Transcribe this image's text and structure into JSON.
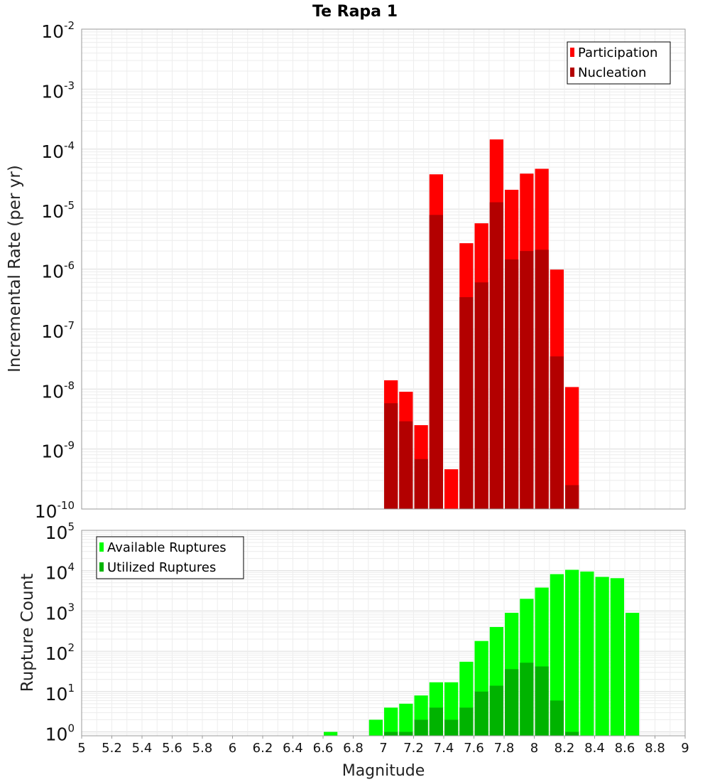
{
  "chart_data": [
    {
      "type": "bar",
      "title": "Te Rapa 1",
      "xlabel": "",
      "ylabel": "Incremental Rate (per yr)",
      "yscale": "log",
      "ylim": [
        1e-10,
        0.01
      ],
      "xlim": [
        5,
        9
      ],
      "y_ticks": [
        {
          "base": "10",
          "exp": "-10"
        },
        {
          "base": "10",
          "exp": "-9"
        },
        {
          "base": "10",
          "exp": "-8"
        },
        {
          "base": "10",
          "exp": "-7"
        },
        {
          "base": "10",
          "exp": "-6"
        },
        {
          "base": "10",
          "exp": "-5"
        },
        {
          "base": "10",
          "exp": "-4"
        },
        {
          "base": "10",
          "exp": "-3"
        },
        {
          "base": "10",
          "exp": "-2"
        }
      ],
      "legend_position": "top-right",
      "bar_width": 0.1,
      "series": [
        {
          "name": "Participation",
          "color": "#ff0000",
          "x": [
            7.05,
            7.15,
            7.25,
            7.35,
            7.45,
            7.55,
            7.65,
            7.75,
            7.85,
            7.95,
            8.05,
            8.15,
            8.25
          ],
          "values": [
            1.4e-08,
            9e-09,
            2.5e-09,
            3.8e-05,
            4.6e-10,
            2.7e-06,
            5.8e-06,
            0.000145,
            2.1e-05,
            3.9e-05,
            4.7e-05,
            9.8e-07,
            1.08e-08
          ]
        },
        {
          "name": "Nucleation",
          "color": "#b30000",
          "x": [
            7.05,
            7.15,
            7.25,
            7.35,
            7.55,
            7.65,
            7.75,
            7.85,
            7.95,
            8.05,
            8.15,
            8.25
          ],
          "values": [
            5.8e-09,
            2.9e-09,
            6.8e-10,
            8e-06,
            3.4e-07,
            6e-07,
            1.3e-05,
            1.45e-06,
            2e-06,
            2.1e-06,
            3.5e-08,
            2.5e-10
          ]
        }
      ]
    },
    {
      "type": "bar",
      "title": "",
      "xlabel": "Magnitude",
      "ylabel": "Rupture Count",
      "yscale": "log",
      "ylim": [
        0.8,
        100000.0
      ],
      "xlim": [
        5,
        9
      ],
      "x_ticks": [
        "5",
        "5.2",
        "5.4",
        "5.6",
        "5.8",
        "6",
        "6.2",
        "6.4",
        "6.6",
        "6.8",
        "7",
        "7.2",
        "7.4",
        "7.6",
        "7.8",
        "8",
        "8.2",
        "8.4",
        "8.6",
        "8.8",
        "9"
      ],
      "y_ticks": [
        {
          "base": "10",
          "exp": "0"
        },
        {
          "base": "10",
          "exp": "1"
        },
        {
          "base": "10",
          "exp": "2"
        },
        {
          "base": "10",
          "exp": "3"
        },
        {
          "base": "10",
          "exp": "4"
        },
        {
          "base": "10",
          "exp": "5"
        }
      ],
      "legend_position": "top-left",
      "bar_width": 0.1,
      "series": [
        {
          "name": "Available Ruptures",
          "color": "#00ff00",
          "x": [
            6.65,
            6.95,
            7.05,
            7.15,
            7.25,
            7.35,
            7.45,
            7.55,
            7.65,
            7.75,
            7.85,
            7.95,
            8.05,
            8.15,
            8.25,
            8.35,
            8.45,
            8.55,
            8.65
          ],
          "values": [
            1,
            2,
            4,
            5,
            8,
            17,
            17,
            55,
            180,
            400,
            900,
            2000,
            3800,
            8200,
            10500,
            9500,
            7000,
            6500,
            900
          ]
        },
        {
          "name": "Utilized Ruptures",
          "color": "#00b300",
          "x": [
            7.05,
            7.15,
            7.25,
            7.35,
            7.45,
            7.55,
            7.65,
            7.75,
            7.85,
            7.95,
            8.05,
            8.15,
            8.25
          ],
          "values": [
            1,
            1,
            2,
            4,
            2,
            4,
            10,
            14,
            36,
            52,
            42,
            6,
            1
          ]
        }
      ]
    }
  ]
}
